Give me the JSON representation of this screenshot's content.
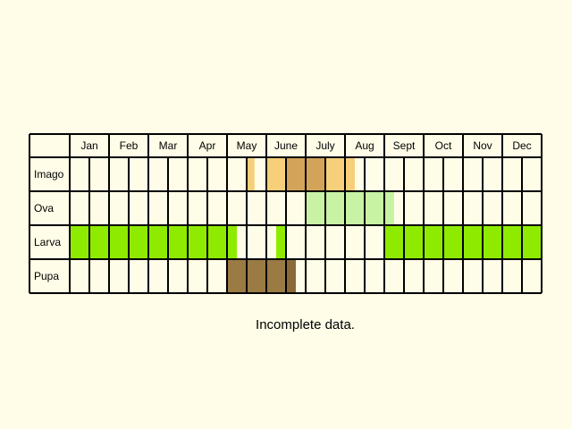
{
  "months": [
    "Jan",
    "Feb",
    "Mar",
    "Apr",
    "May",
    "June",
    "July",
    "Aug",
    "Sept",
    "Oct",
    "Nov",
    "Dec"
  ],
  "caption": "Incomplete data.",
  "colors": {
    "background": "#fffde8",
    "grid": "#000000"
  },
  "stages": [
    {
      "label": "Imago",
      "segments": [
        {
          "start": 4.5,
          "end": 4.7,
          "color": "#f5cf7a"
        },
        {
          "start": 5.0,
          "end": 5.5,
          "color": "#f5cf7a"
        },
        {
          "start": 5.5,
          "end": 6.5,
          "color": "#d4a35a"
        },
        {
          "start": 6.5,
          "end": 7.25,
          "color": "#f5cf7a"
        }
      ]
    },
    {
      "label": "Ova",
      "segments": [
        {
          "start": 6.0,
          "end": 8.25,
          "color": "#c8f2a4"
        }
      ]
    },
    {
      "label": "Larva",
      "segments": [
        {
          "start": 0.0,
          "end": 4.25,
          "color": "#8eeb00"
        },
        {
          "start": 5.25,
          "end": 5.5,
          "color": "#8eeb00"
        },
        {
          "start": 8.0,
          "end": 12.0,
          "color": "#8eeb00"
        }
      ]
    },
    {
      "label": "Pupa",
      "segments": [
        {
          "start": 4.0,
          "end": 5.5,
          "color": "#9a7b44"
        },
        {
          "start": 5.5,
          "end": 5.75,
          "color": "#8a6a38"
        }
      ]
    }
  ]
}
